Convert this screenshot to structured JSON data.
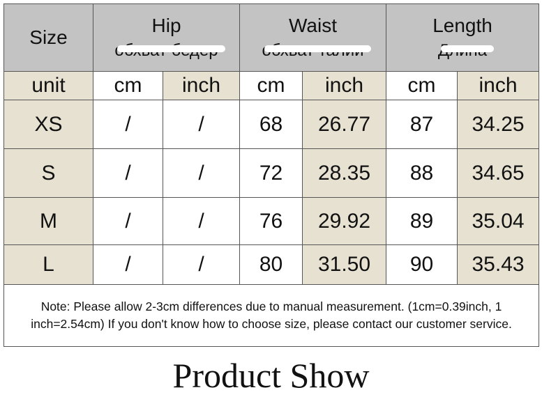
{
  "header": {
    "size": "Size",
    "columns": [
      {
        "title": "Hip",
        "subtitle": "обхват бедер"
      },
      {
        "title": "Waist",
        "subtitle": "обхват талии"
      },
      {
        "title": "Length",
        "subtitle": "Длина"
      }
    ]
  },
  "units": [
    "unit",
    "cm",
    "inch",
    "cm",
    "inch",
    "cm",
    "inch"
  ],
  "table": {
    "rows": [
      [
        "XS",
        "/",
        "/",
        "68",
        "26.77",
        "87",
        "34.25"
      ],
      [
        "S",
        "/",
        "/",
        "72",
        "28.35",
        "88",
        "34.65"
      ],
      [
        "M",
        "/",
        "/",
        "76",
        "29.92",
        "89",
        "35.04"
      ],
      [
        "L",
        "/",
        "/",
        "80",
        "31.50",
        "90",
        "35.43"
      ]
    ]
  },
  "note": "Note: Please allow 2-3cm differences due to manual measurement. (1cm=0.39inch, 1 inch=2.54cm)  If you don't know how to choose size, please contact our customer service.",
  "footer_title": "Product Show"
}
